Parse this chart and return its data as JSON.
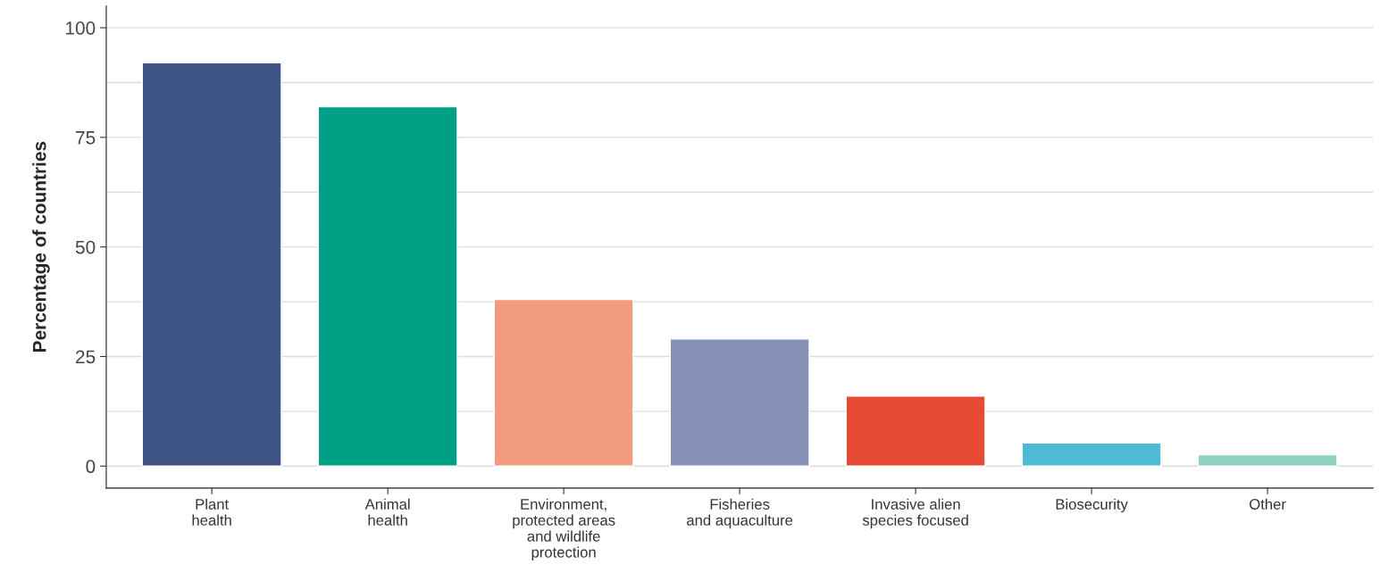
{
  "chart_data": {
    "type": "bar",
    "ylabel": "Percentage of countries",
    "categories": [
      "Plant\nhealth",
      "Animal\nhealth",
      "Environment,\nprotected areas\nand wildlife\nprotection",
      "Fisheries\nand aquaculture",
      "Invasive alien\nspecies focused",
      "Biosecurity",
      "Other"
    ],
    "values": [
      92,
      82,
      38,
      29,
      16,
      5.3,
      2.6
    ],
    "colors": [
      "#3d5485",
      "#00a087",
      "#f19c7f",
      "#8491b4",
      "#e64b35",
      "#4dbbd5",
      "#91d1c2"
    ],
    "ylim": [
      -5,
      105
    ],
    "yticks": [
      0,
      {
        "value": 12.5,
        "label": null
      },
      25,
      {
        "value": 37.5,
        "label": null
      },
      50,
      {
        "value": 62.5,
        "label": null
      },
      75,
      {
        "value": 87.5,
        "label": null
      },
      100
    ],
    "grid": "y",
    "legend": false
  }
}
